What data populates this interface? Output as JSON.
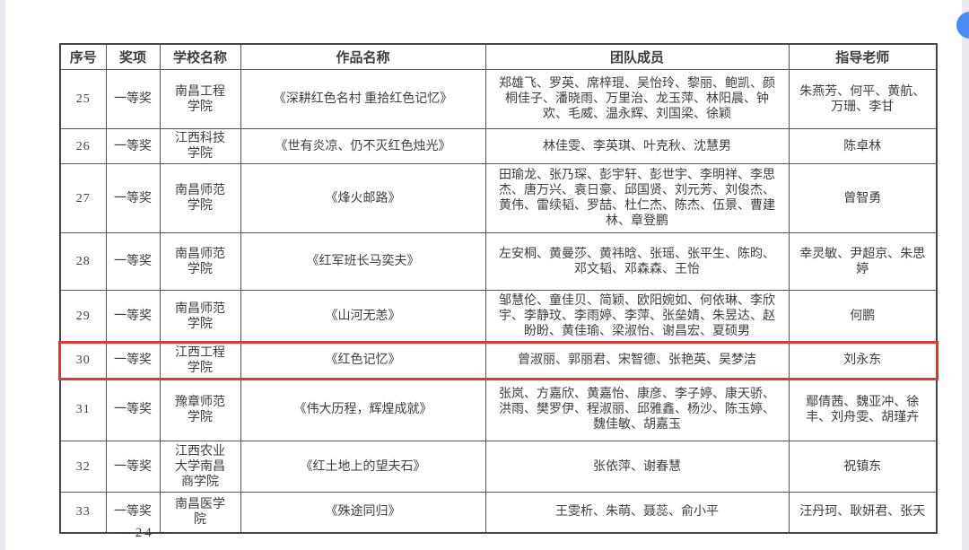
{
  "document": {
    "page_number": "— 24 —"
  },
  "viewer": {
    "floating_button_color": "#4a8bf5"
  },
  "table": {
    "columns": [
      "序号",
      "奖项",
      "学校名称",
      "作品名称",
      "团队成员",
      "指导老师"
    ],
    "highlight": {
      "row_no": "30",
      "color": "#e8352a"
    },
    "rows": [
      {
        "no": "25",
        "award": "一等奖",
        "school": "南昌工程学院",
        "work": "《深耕红色名村 重拾红色记忆》",
        "members": "郑雄飞、罗英、席梓琨、吴怡玲、黎丽、鲍凯、颜桐佳子、潘晓雨、万里治、龙玉萍、林阳晨、钟欢、毛威、温永辉、刘国梁、徐颖",
        "advisors": "朱燕芳、何平、黄航、万珊、李甘"
      },
      {
        "no": "26",
        "award": "一等奖",
        "school": "江西科技学院",
        "work": "《世有炎凉、仍不灭红色烛光》",
        "members": "林佳雯、李英琪、叶克秋、沈慧男",
        "advisors": "陈卓林"
      },
      {
        "no": "27",
        "award": "一等奖",
        "school": "南昌师范学院",
        "work": "《烽火邮路》",
        "members": "田瑜龙、张乃琛、彭宇轩、彭世宇、李明祥、李思杰、唐万兴、袁日豪、邱国贤、刘元芳、刘俊杰、黄伟、雷续韬、罗喆、杜仁杰、陈杰、伍景、曹建林、章登鹏",
        "advisors": "曾智勇"
      },
      {
        "no": "28",
        "award": "一等奖",
        "school": "南昌师范学院",
        "work": "《红军班长马奕夫》",
        "members": "左安桐、黄曼莎、黄祎晗、张瑶、张平生、陈昀、邓文韬、邓森森、王怡",
        "advisors": "幸灵敏、尹超京、朱思婷"
      },
      {
        "no": "29",
        "award": "一等奖",
        "school": "南昌师范学院",
        "work": "《山河无恙》",
        "members": "邹慧伦、童佳贝、简颖、欧阳婉如、何依琳、李欣宇、李静玟、李雨婷、李萍、张垒婧、朱昱达、赵盼盼、黄佳瑜、梁淑怡、谢昌宏、夏硕男",
        "advisors": "何鹏"
      },
      {
        "no": "30",
        "award": "一等奖",
        "school": "江西工程学院",
        "work": "《红色记忆》",
        "members": "曾淑丽、郭丽君、宋智德、张艳英、吴梦洁",
        "advisors": "刘永东"
      },
      {
        "no": "31",
        "award": "一等奖",
        "school": "豫章师范学院",
        "work": "《伟大历程，辉煌成就》",
        "members": "张岚、方嘉欣、黄嘉怡、康彦、李子婷、康天骄、洪雨、樊罗伊、程淑丽、邱雅鑫、杨沙、陈玉婷、魏佳敏、胡嘉玉",
        "advisors": "鄢倩茜、魏亚冲、徐丰、刘舟雯、胡瑾卉"
      },
      {
        "no": "32",
        "award": "一等奖",
        "school": "江西农业大学南昌商学院",
        "work": "《红土地上的望夫石》",
        "members": "张依萍、谢春慧",
        "advisors": "祝镇东"
      },
      {
        "no": "33",
        "award": "一等奖",
        "school": "南昌医学院",
        "work": "《殊途同归》",
        "members": "王雯析、朱萌、聂蕊、俞小平",
        "advisors": "汪丹珂、耿妍君、张天"
      }
    ]
  }
}
